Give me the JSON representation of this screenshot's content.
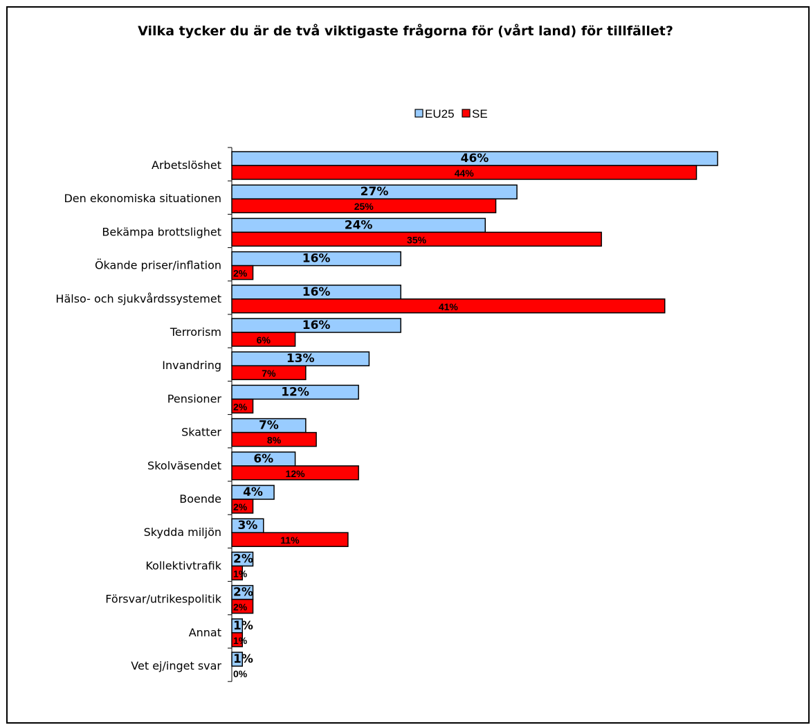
{
  "chart_data": {
    "type": "bar",
    "orientation": "horizontal",
    "title": "Vilka tycker du är de två viktigaste frågorna för (vårt land) för tillfället?",
    "categories": [
      "Arbetslöshet",
      "Den ekonomiska situationen",
      "Bekämpa brottslighet",
      "Ökande priser/inflation",
      "Hälso- och sjukvårdssystemet",
      "Terrorism",
      "Invandring",
      "Pensioner",
      "Skatter",
      "Skolväsendet",
      "Boende",
      "Skydda miljön",
      "Kollektivtrafik",
      "Försvar/utrikespolitik",
      "Annat",
      "Vet ej/inget svar"
    ],
    "series": [
      {
        "name": "EU25",
        "color": "#99ccff",
        "values": [
          46,
          27,
          24,
          16,
          16,
          16,
          13,
          12,
          7,
          6,
          4,
          3,
          2,
          2,
          1,
          1
        ]
      },
      {
        "name": "SE",
        "color": "#ff0000",
        "values": [
          44,
          25,
          35,
          2,
          41,
          6,
          7,
          2,
          8,
          12,
          2,
          11,
          1,
          2,
          1,
          0
        ]
      }
    ],
    "value_suffix": "%",
    "xlim": [
      0,
      46
    ],
    "legend": "top-center",
    "grid": false
  }
}
